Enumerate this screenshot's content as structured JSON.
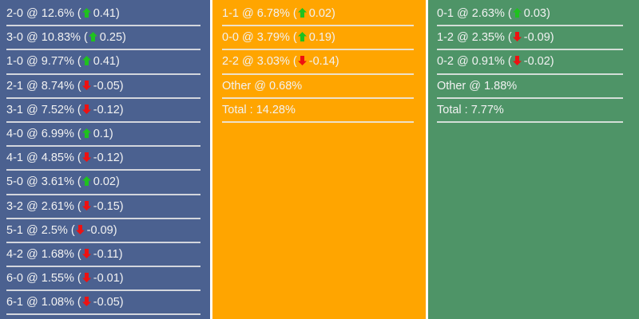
{
  "columns": [
    {
      "name": "home",
      "color": "#4b6190",
      "rows": [
        {
          "score": "2-0",
          "pct": "12.6%",
          "dir": "up",
          "change": "0.41"
        },
        {
          "score": "3-0",
          "pct": "10.83%",
          "dir": "up",
          "change": "0.25"
        },
        {
          "score": "1-0",
          "pct": "9.77%",
          "dir": "up",
          "change": "0.41"
        },
        {
          "score": "2-1",
          "pct": "8.74%",
          "dir": "down",
          "change": "-0.05"
        },
        {
          "score": "3-1",
          "pct": "7.52%",
          "dir": "down",
          "change": "-0.12"
        },
        {
          "score": "4-0",
          "pct": "6.99%",
          "dir": "up",
          "change": "0.1"
        },
        {
          "score": "4-1",
          "pct": "4.85%",
          "dir": "down",
          "change": "-0.12"
        },
        {
          "score": "5-0",
          "pct": "3.61%",
          "dir": "up",
          "change": "0.02"
        },
        {
          "score": "3-2",
          "pct": "2.61%",
          "dir": "down",
          "change": "-0.15"
        },
        {
          "score": "5-1",
          "pct": "2.5%",
          "dir": "down",
          "change": "-0.09"
        },
        {
          "score": "4-2",
          "pct": "1.68%",
          "dir": "down",
          "change": "-0.11"
        },
        {
          "score": "6-0",
          "pct": "1.55%",
          "dir": "down",
          "change": "-0.01"
        },
        {
          "score": "6-1",
          "pct": "1.08%",
          "dir": "down",
          "change": "-0.05"
        }
      ],
      "extra": []
    },
    {
      "name": "draw",
      "color": "#ffa500",
      "rows": [
        {
          "score": "1-1",
          "pct": "6.78%",
          "dir": "up",
          "change": "0.02"
        },
        {
          "score": "0-0",
          "pct": "3.79%",
          "dir": "up",
          "change": "0.19"
        },
        {
          "score": "2-2",
          "pct": "3.03%",
          "dir": "down",
          "change": "-0.14"
        }
      ],
      "extra": [
        "Other @ 0.68%",
        "Total : 14.28%"
      ]
    },
    {
      "name": "away",
      "color": "#4e9467",
      "rows": [
        {
          "score": "0-1",
          "pct": "2.63%",
          "dir": "up",
          "change": "0.03"
        },
        {
          "score": "1-2",
          "pct": "2.35%",
          "dir": "down",
          "change": "-0.09"
        },
        {
          "score": "0-2",
          "pct": "0.91%",
          "dir": "down",
          "change": "-0.02"
        }
      ],
      "extra": [
        "Other @ 1.88%",
        "Total : 7.77%"
      ]
    }
  ],
  "arrow_colors": {
    "up": "#1fc11f",
    "down": "#ee1111"
  }
}
